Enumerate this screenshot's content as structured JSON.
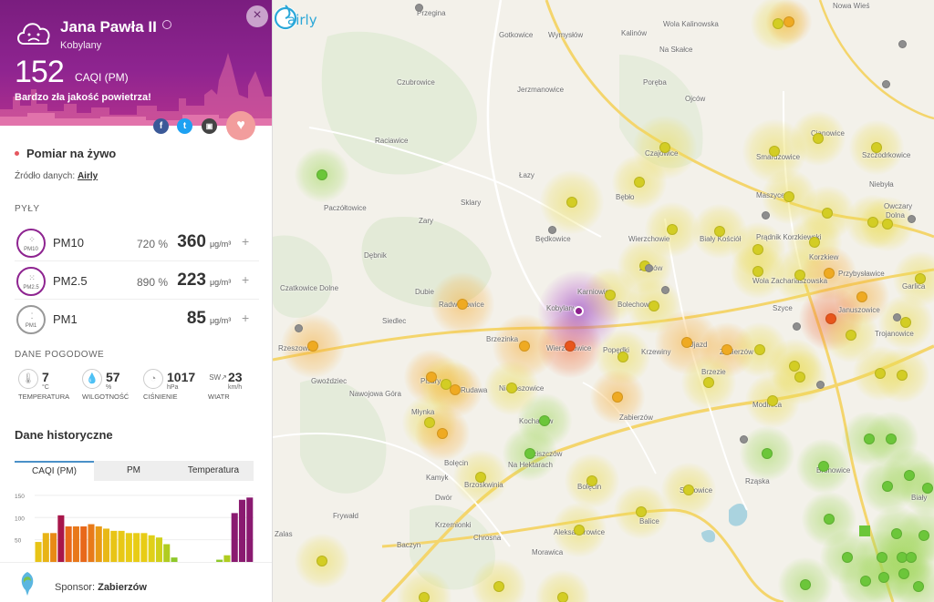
{
  "station": {
    "name": "Jana Pawła II",
    "district": "Kobylany",
    "caqi_value": "152",
    "caqi_unit": "CAQI (PM)",
    "quality_text": "Bardzo zła jakość powietrza!",
    "close_label": "×"
  },
  "social": {
    "facebook": "f",
    "twitter": "t",
    "embed": "▣",
    "favorite": "♥"
  },
  "live": {
    "title": "Pomiar na żywo",
    "source_label": "Źródło danych:",
    "source_link": "Airly"
  },
  "pm_section_label": "PYŁY",
  "pm": [
    {
      "name": "PM10",
      "icon_label": "PM10",
      "percent": "720 %",
      "value": "360",
      "unit": "μg/m³",
      "plus": "+"
    },
    {
      "name": "PM2.5",
      "icon_label": "PM2.5",
      "percent": "890 %",
      "value": "223",
      "unit": "μg/m³",
      "plus": "+"
    },
    {
      "name": "PM1",
      "icon_label": "PM1",
      "percent": "",
      "value": "85",
      "unit": "μg/m³",
      "plus": "+"
    }
  ],
  "weather_section_label": "DANE POGODOWE",
  "weather": {
    "temperature": {
      "value": "7",
      "unit": "°C",
      "label": "TEMPERATURA",
      "icon": "thermometer-icon"
    },
    "humidity": {
      "value": "57",
      "unit": "%",
      "label": "WILGOTNOŚĆ",
      "icon": "drop-icon"
    },
    "pressure": {
      "value": "1017",
      "unit": "hPa",
      "label": "CIŚNIENIE",
      "icon": "gauge-icon"
    },
    "wind": {
      "value": "23",
      "unit": "km/h",
      "label": "WIATR",
      "direction": "SW",
      "icon": "wind-icon"
    }
  },
  "history": {
    "title": "Dane historyczne",
    "tabs": [
      "CAQI (PM)",
      "PM",
      "Temperatura"
    ],
    "active_tab": 0
  },
  "chart_data": {
    "type": "bar",
    "yticks": [
      50,
      100,
      150
    ],
    "ylim": [
      0,
      160
    ],
    "values": [
      45,
      65,
      65,
      105,
      80,
      80,
      80,
      85,
      80,
      75,
      70,
      70,
      65,
      65,
      65,
      60,
      55,
      40,
      10,
      0,
      0,
      0,
      0,
      0,
      5,
      15,
      110,
      140,
      145
    ],
    "colors": [
      "#e8c416",
      "#e8b416",
      "#e88a16",
      "#a8164a",
      "#e8691a",
      "#e8781a",
      "#e8681a",
      "#e87a1a",
      "#e89a16",
      "#e8b816",
      "#e8c416",
      "#e8c816",
      "#e8cc16",
      "#e8cc16",
      "#e8cc16",
      "#e0d018",
      "#d0d01a",
      "#b0cc20",
      "#8ec82a",
      "#8ec82a",
      "#8ec82a",
      "#8ec82a",
      "#8ec82a",
      "#8ec82a",
      "#8ec82a",
      "#b0cc20",
      "#8a1a70",
      "#8a1a70",
      "#8a1a70"
    ]
  },
  "sponsor": {
    "label": "Sponsor:",
    "name": "Zabierzów"
  },
  "map": {
    "brand": "airly",
    "places": [
      {
        "t": "Przegina",
        "x": 158,
        "y": 10
      },
      {
        "t": "Gotkowice",
        "x": 248,
        "y": 34
      },
      {
        "t": "Wymysłów",
        "x": 302,
        "y": 34
      },
      {
        "t": "Kalinów",
        "x": 382,
        "y": 32
      },
      {
        "t": "Wola Kalinowska",
        "x": 428,
        "y": 22
      },
      {
        "t": "Na Skałce",
        "x": 424,
        "y": 50
      },
      {
        "t": "Czubrowice",
        "x": 136,
        "y": 86
      },
      {
        "t": "Jerzmanowice",
        "x": 268,
        "y": 94
      },
      {
        "t": "Poręba",
        "x": 406,
        "y": 86
      },
      {
        "t": "Ojców",
        "x": 452,
        "y": 104
      },
      {
        "t": "Raciawice",
        "x": 112,
        "y": 150
      },
      {
        "t": "Czajowice",
        "x": 408,
        "y": 164
      },
      {
        "t": "Smardzowice",
        "x": 530,
        "y": 168
      },
      {
        "t": "Cianowice",
        "x": 590,
        "y": 142
      },
      {
        "t": "Szczodrkowice",
        "x": 646,
        "y": 166
      },
      {
        "t": "Łazy",
        "x": 270,
        "y": 188
      },
      {
        "t": "Sklary",
        "x": 206,
        "y": 218
      },
      {
        "t": "Bębło",
        "x": 376,
        "y": 212
      },
      {
        "t": "Niebyła",
        "x": 654,
        "y": 198
      },
      {
        "t": "Paczółtowice",
        "x": 56,
        "y": 224
      },
      {
        "t": "Maszyce",
        "x": 530,
        "y": 210
      },
      {
        "t": "Owczary",
        "x": 670,
        "y": 222
      },
      {
        "t": "Dolna",
        "x": 672,
        "y": 232
      },
      {
        "t": "Zary",
        "x": 160,
        "y": 238
      },
      {
        "t": "Będkowice",
        "x": 288,
        "y": 258
      },
      {
        "t": "Wierzchowie",
        "x": 390,
        "y": 258
      },
      {
        "t": "Biały Kościół",
        "x": 468,
        "y": 258
      },
      {
        "t": "Prądnik Korzkiewski",
        "x": 530,
        "y": 256
      },
      {
        "t": "Dębnik",
        "x": 100,
        "y": 276
      },
      {
        "t": "Korzkiew",
        "x": 588,
        "y": 278
      },
      {
        "t": "Zelków",
        "x": 402,
        "y": 290
      },
      {
        "t": "Przybysławice",
        "x": 620,
        "y": 296
      },
      {
        "t": "Czatkowice Dolne",
        "x": 8,
        "y": 312
      },
      {
        "t": "Dubie",
        "x": 156,
        "y": 316
      },
      {
        "t": "Radwanowice",
        "x": 182,
        "y": 330
      },
      {
        "t": "Karniowice",
        "x": 334,
        "y": 316
      },
      {
        "t": "Bolechowice",
        "x": 378,
        "y": 330
      },
      {
        "t": "Wola Zachariaszowska",
        "x": 526,
        "y": 304
      },
      {
        "t": "Garlica",
        "x": 690,
        "y": 310
      },
      {
        "t": "Kobylany",
        "x": 300,
        "y": 334
      },
      {
        "t": "Januszowice",
        "x": 620,
        "y": 336
      },
      {
        "t": "Szyce",
        "x": 548,
        "y": 334
      },
      {
        "t": "Siedlec",
        "x": 120,
        "y": 348
      },
      {
        "t": "Brzezinka",
        "x": 234,
        "y": 368
      },
      {
        "t": "Wierzchowice",
        "x": 300,
        "y": 378
      },
      {
        "t": "Popędki",
        "x": 362,
        "y": 380
      },
      {
        "t": "Krzewiny",
        "x": 404,
        "y": 382
      },
      {
        "t": "Ujazd",
        "x": 456,
        "y": 374
      },
      {
        "t": "Zabierzów",
        "x": 490,
        "y": 382
      },
      {
        "t": "Trojanowice",
        "x": 660,
        "y": 362
      },
      {
        "t": "Rzeszowa",
        "x": 6,
        "y": 378
      },
      {
        "t": "Brzezie",
        "x": 470,
        "y": 404
      },
      {
        "t": "Gwoździec",
        "x": 42,
        "y": 414
      },
      {
        "t": "Pisary",
        "x": 162,
        "y": 414
      },
      {
        "t": "Nawojowa Góra",
        "x": 84,
        "y": 428
      },
      {
        "t": "Rudawa",
        "x": 206,
        "y": 424
      },
      {
        "t": "Niegoszowice",
        "x": 248,
        "y": 422
      },
      {
        "t": "Młynka",
        "x": 152,
        "y": 448
      },
      {
        "t": "Modlnica",
        "x": 526,
        "y": 440
      },
      {
        "t": "Zabierzów",
        "x": 380,
        "y": 454
      },
      {
        "t": "Kochanów",
        "x": 270,
        "y": 458
      },
      {
        "t": "Bolęcin",
        "x": 188,
        "y": 504
      },
      {
        "t": "Kamyk",
        "x": 168,
        "y": 520
      },
      {
        "t": "Ściszczów",
        "x": 280,
        "y": 494
      },
      {
        "t": "Na Hektarach",
        "x": 258,
        "y": 506
      },
      {
        "t": "Brzoskwinia",
        "x": 210,
        "y": 528
      },
      {
        "t": "Bolęcin",
        "x": 334,
        "y": 530
      },
      {
        "t": "Dwór",
        "x": 178,
        "y": 542
      },
      {
        "t": "Sułkowice",
        "x": 446,
        "y": 534
      },
      {
        "t": "Rząska",
        "x": 518,
        "y": 524
      },
      {
        "t": "Bronowice",
        "x": 596,
        "y": 512
      },
      {
        "t": "Frywałd",
        "x": 66,
        "y": 562
      },
      {
        "t": "Krzemionki",
        "x": 178,
        "y": 572
      },
      {
        "t": "Chrosna",
        "x": 220,
        "y": 586
      },
      {
        "t": "Aleksandrowice",
        "x": 308,
        "y": 580
      },
      {
        "t": "Baczyn",
        "x": 136,
        "y": 594
      },
      {
        "t": "Zalas",
        "x": 2,
        "y": 582
      },
      {
        "t": "Morawica",
        "x": 284,
        "y": 602
      },
      {
        "t": "Balice",
        "x": 402,
        "y": 568
      },
      {
        "t": "Nowa Wieś",
        "x": 614,
        "y": 2
      },
      {
        "t": "Biały",
        "x": 700,
        "y": 542
      }
    ],
    "sensors": [
      {
        "x": 554,
        "y": 26,
        "c": "y",
        "b": "y",
        "s": 60
      },
      {
        "x": 566,
        "y": 24,
        "c": "o",
        "b": "o",
        "s": 50
      },
      {
        "x": 54,
        "y": 192,
        "c": "g",
        "b": "g",
        "s": 60
      },
      {
        "x": 430,
        "y": 162,
        "c": "y",
        "b": "y",
        "s": 70
      },
      {
        "x": 550,
        "y": 166,
        "c": "y",
        "b": "y",
        "s": 70
      },
      {
        "x": 598,
        "y": 152,
        "c": "y",
        "b": "y",
        "s": 60
      },
      {
        "x": 662,
        "y": 162,
        "c": "y",
        "b": "y",
        "s": 60
      },
      {
        "x": 328,
        "y": 222,
        "c": "y",
        "b": "y",
        "s": 70
      },
      {
        "x": 402,
        "y": 200,
        "c": "y",
        "b": "y",
        "s": 60
      },
      {
        "x": 566,
        "y": 216,
        "c": "y",
        "b": "y",
        "s": 60
      },
      {
        "x": 608,
        "y": 234,
        "c": "y",
        "b": "y",
        "s": 60
      },
      {
        "x": 658,
        "y": 244,
        "c": "y",
        "b": "y",
        "s": 60
      },
      {
        "x": 438,
        "y": 252,
        "c": "y",
        "b": "y",
        "s": 60
      },
      {
        "x": 490,
        "y": 254,
        "c": "y",
        "b": "y",
        "s": 60
      },
      {
        "x": 532,
        "y": 274,
        "c": "y",
        "b": "y",
        "s": 60
      },
      {
        "x": 594,
        "y": 266,
        "c": "y",
        "b": "y",
        "s": 60
      },
      {
        "x": 674,
        "y": 246,
        "c": "y",
        "b": "y",
        "s": 60
      },
      {
        "x": 532,
        "y": 298,
        "c": "y",
        "b": "y",
        "s": 60
      },
      {
        "x": 578,
        "y": 302,
        "c": "y",
        "b": "y",
        "s": 60
      },
      {
        "x": 610,
        "y": 300,
        "c": "o",
        "b": "o",
        "s": 60
      },
      {
        "x": 408,
        "y": 292,
        "c": "y",
        "b": "y",
        "s": 60
      },
      {
        "x": 370,
        "y": 324,
        "c": "y",
        "b": "y",
        "s": 60
      },
      {
        "x": 418,
        "y": 336,
        "c": "y",
        "b": "y",
        "s": 60
      },
      {
        "x": 646,
        "y": 326,
        "c": "o",
        "b": "o",
        "s": 60
      },
      {
        "x": 710,
        "y": 306,
        "c": "y",
        "b": "y",
        "s": 60
      },
      {
        "x": 208,
        "y": 334,
        "c": "o",
        "b": "o",
        "s": 70
      },
      {
        "x": 276,
        "y": 380,
        "c": "o",
        "b": "o",
        "s": 70
      },
      {
        "x": 326,
        "y": 380,
        "c": "r",
        "b": "r",
        "s": 70
      },
      {
        "x": 384,
        "y": 392,
        "c": "y",
        "b": "y",
        "s": 60
      },
      {
        "x": 454,
        "y": 376,
        "c": "o",
        "b": "o",
        "s": 70
      },
      {
        "x": 498,
        "y": 384,
        "c": "o",
        "b": "o",
        "s": 60
      },
      {
        "x": 534,
        "y": 384,
        "c": "y",
        "b": "y",
        "s": 60
      },
      {
        "x": 478,
        "y": 420,
        "c": "y",
        "b": "y",
        "s": 60
      },
      {
        "x": 612,
        "y": 350,
        "c": "r",
        "b": "r",
        "s": 70
      },
      {
        "x": 634,
        "y": 368,
        "c": "y",
        "b": "y",
        "s": 60
      },
      {
        "x": 694,
        "y": 354,
        "c": "y",
        "b": "y",
        "s": 60
      },
      {
        "x": 572,
        "y": 402,
        "c": "y",
        "b": "y",
        "s": 60
      },
      {
        "x": 578,
        "y": 414,
        "c": "y",
        "b": "y",
        "s": 60
      },
      {
        "x": 666,
        "y": 410,
        "c": "y",
        "b": "y",
        "s": 60
      },
      {
        "x": 690,
        "y": 412,
        "c": "y",
        "b": "y",
        "s": 60
      },
      {
        "x": 44,
        "y": 380,
        "c": "o",
        "b": "o",
        "s": 70
      },
      {
        "x": 174,
        "y": 414,
        "c": "o",
        "b": "o",
        "s": 60
      },
      {
        "x": 190,
        "y": 422,
        "c": "y",
        "b": "y",
        "s": 60
      },
      {
        "x": 200,
        "y": 428,
        "c": "o",
        "b": "o",
        "s": 60
      },
      {
        "x": 262,
        "y": 426,
        "c": "y",
        "b": "y",
        "s": 60
      },
      {
        "x": 378,
        "y": 436,
        "c": "o",
        "b": "o",
        "s": 60
      },
      {
        "x": 548,
        "y": 440,
        "c": "y",
        "b": "y",
        "s": 60
      },
      {
        "x": 172,
        "y": 464,
        "c": "y",
        "b": "y",
        "s": 60
      },
      {
        "x": 186,
        "y": 476,
        "c": "o",
        "b": "o",
        "s": 60
      },
      {
        "x": 298,
        "y": 462,
        "c": "g",
        "b": "g",
        "s": 60
      },
      {
        "x": 282,
        "y": 498,
        "c": "g",
        "b": "g",
        "s": 60
      },
      {
        "x": 228,
        "y": 524,
        "c": "y",
        "b": "y",
        "s": 60
      },
      {
        "x": 350,
        "y": 528,
        "c": "y",
        "b": "y",
        "s": 60
      },
      {
        "x": 456,
        "y": 538,
        "c": "y",
        "b": "y",
        "s": 60
      },
      {
        "x": 404,
        "y": 562,
        "c": "y",
        "b": "y",
        "s": 60
      },
      {
        "x": 336,
        "y": 582,
        "c": "y",
        "b": "y",
        "s": 60
      },
      {
        "x": 54,
        "y": 616,
        "c": "y",
        "b": "y",
        "s": 60
      },
      {
        "x": 166,
        "y": 656,
        "c": "y",
        "b": "y",
        "s": 60
      },
      {
        "x": 248,
        "y": 644,
        "c": "y",
        "b": "y",
        "s": 60
      },
      {
        "x": 318,
        "y": 656,
        "c": "y",
        "b": "y",
        "s": 60
      },
      {
        "x": 542,
        "y": 498,
        "c": "g",
        "b": "g",
        "s": 60
      },
      {
        "x": 604,
        "y": 512,
        "c": "g",
        "b": "g",
        "s": 60
      },
      {
        "x": 654,
        "y": 482,
        "c": "g",
        "b": "g",
        "s": 60
      },
      {
        "x": 678,
        "y": 482,
        "c": "g",
        "b": "g",
        "s": 60
      },
      {
        "x": 698,
        "y": 522,
        "c": "g",
        "b": "g",
        "s": 60
      },
      {
        "x": 674,
        "y": 534,
        "c": "g",
        "b": "g",
        "s": 60
      },
      {
        "x": 718,
        "y": 536,
        "c": "g",
        "b": "g",
        "s": 60
      },
      {
        "x": 610,
        "y": 570,
        "c": "g",
        "b": "g",
        "s": 60
      },
      {
        "x": 684,
        "y": 586,
        "c": "g",
        "b": "g",
        "s": 60
      },
      {
        "x": 714,
        "y": 588,
        "c": "g",
        "b": "g",
        "s": 60
      },
      {
        "x": 630,
        "y": 612,
        "c": "g",
        "b": "g",
        "s": 60
      },
      {
        "x": 668,
        "y": 612,
        "c": "g",
        "b": "g",
        "s": 60
      },
      {
        "x": 690,
        "y": 612,
        "c": "g",
        "b": "g",
        "s": 60
      },
      {
        "x": 700,
        "y": 612,
        "c": "g",
        "b": "g",
        "s": 60
      },
      {
        "x": 692,
        "y": 630,
        "c": "g",
        "b": "g",
        "s": 60
      },
      {
        "x": 670,
        "y": 634,
        "c": "g",
        "b": "g",
        "s": 60
      },
      {
        "x": 584,
        "y": 642,
        "c": "g",
        "b": "g",
        "s": 60
      },
      {
        "x": 650,
        "y": 638,
        "c": "g",
        "b": "g",
        "s": 60
      },
      {
        "x": 708,
        "y": 644,
        "c": "g",
        "b": "g",
        "s": 60
      }
    ],
    "grey_sensors": [
      {
        "x": 160,
        "y": 8
      },
      {
        "x": 690,
        "y": 48
      },
      {
        "x": 672,
        "y": 92
      },
      {
        "x": 306,
        "y": 252
      },
      {
        "x": 412,
        "y": 294
      },
      {
        "x": 430,
        "y": 318
      },
      {
        "x": 540,
        "y": 236
      },
      {
        "x": 700,
        "y": 240
      },
      {
        "x": 28,
        "y": 360
      },
      {
        "x": 574,
        "y": 358
      },
      {
        "x": 684,
        "y": 348
      },
      {
        "x": 600,
        "y": 422
      },
      {
        "x": 516,
        "y": 482
      }
    ],
    "selected": {
      "x": 336,
      "y": 342
    }
  }
}
